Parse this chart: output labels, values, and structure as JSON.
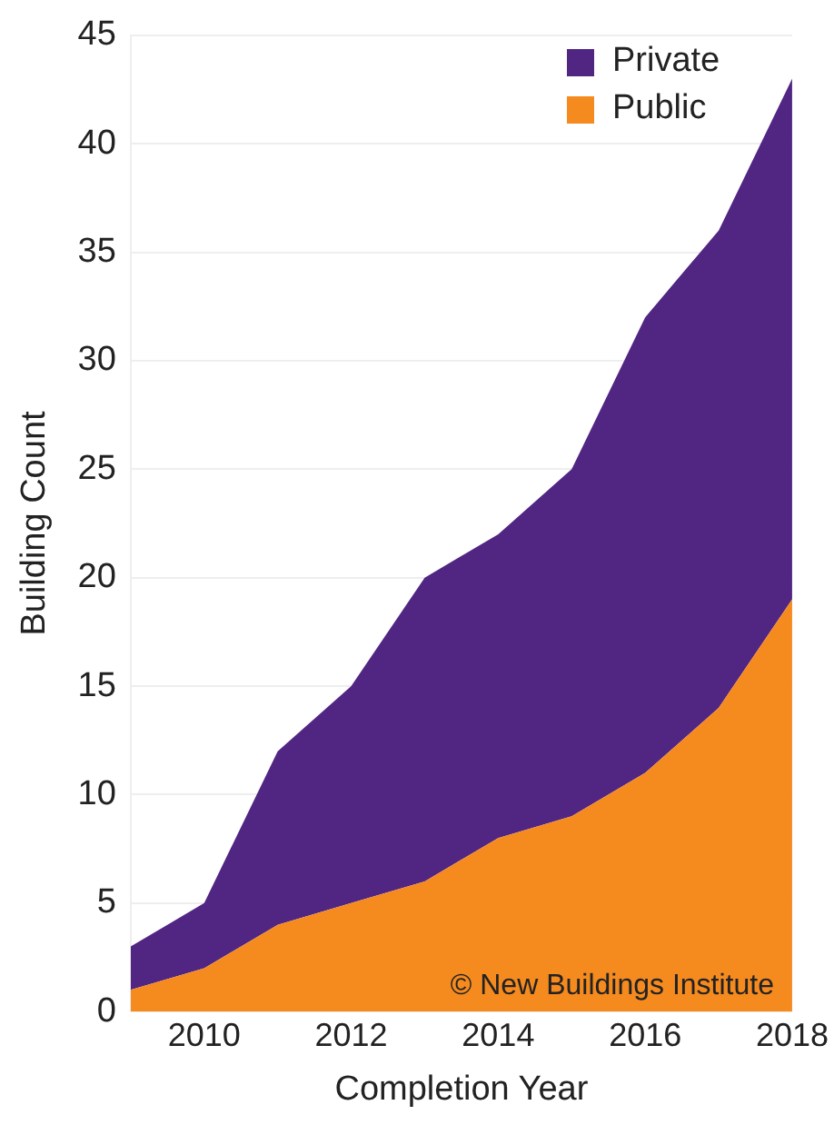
{
  "chart_data": {
    "type": "area",
    "xlabel": "Completion Year",
    "ylabel": "Building Count",
    "x": [
      2009,
      2010,
      2011,
      2012,
      2013,
      2014,
      2015,
      2016,
      2017,
      2018
    ],
    "series": [
      {
        "name": "Public",
        "color": "#f58a1f",
        "values": [
          1,
          2,
          4,
          5,
          6,
          8,
          9,
          11,
          14,
          19
        ]
      },
      {
        "name": "Private",
        "color": "#512683",
        "values": [
          2,
          3,
          8,
          10,
          14,
          14,
          16,
          21,
          22,
          24
        ]
      }
    ],
    "stacked": true,
    "xlim": [
      2009,
      2018
    ],
    "xticks": [
      2010,
      2012,
      2014,
      2016,
      2018
    ],
    "ylim": [
      0,
      45
    ],
    "yticks": [
      0,
      5,
      10,
      15,
      20,
      25,
      30,
      35,
      40,
      45
    ],
    "grid": "y",
    "legend": "top right",
    "annotations": [
      "© New Buildings Institute"
    ]
  }
}
